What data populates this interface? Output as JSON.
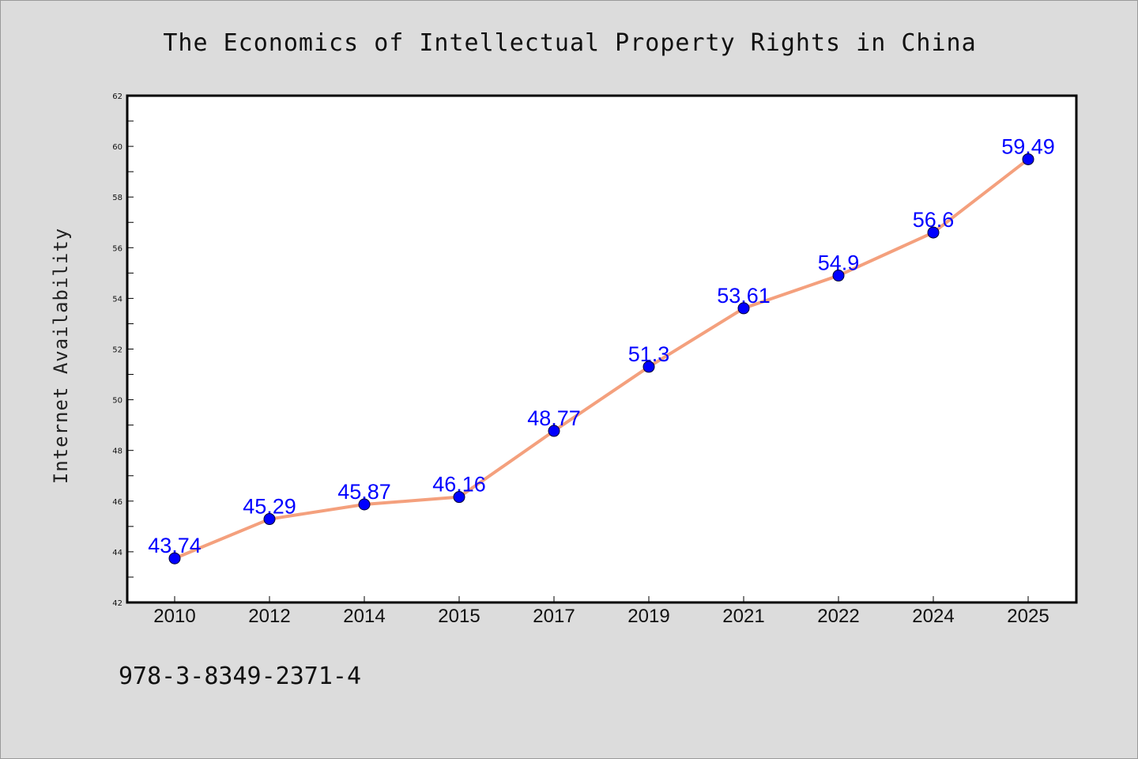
{
  "colors": {
    "background": "#dcdcdc",
    "plot_background": "#ffffff",
    "line": "#f4a07d",
    "marker": "#0000ff",
    "data_label": "#0000ff",
    "text": "#111111"
  },
  "footer": {
    "isbn": "978-3-8349-2371-4"
  },
  "chart_data": {
    "type": "line",
    "title": "The Economics of Intellectual Property Rights in China",
    "xlabel": "",
    "ylabel": "Internet Availability",
    "categories": [
      "2010",
      "2012",
      "2014",
      "2015",
      "2017",
      "2019",
      "2021",
      "2022",
      "2024",
      "2025"
    ],
    "values": [
      43.74,
      45.29,
      45.87,
      46.16,
      48.77,
      51.3,
      53.61,
      54.9,
      56.6,
      59.49
    ],
    "data_labels": [
      "43.74",
      "45.29",
      "45.87",
      "46.16",
      "48.77",
      "51.3",
      "53.61",
      "54.9",
      "56.6",
      "59.49"
    ],
    "ylim": [
      42,
      62
    ],
    "yticks": [
      42,
      44,
      46,
      48,
      50,
      52,
      54,
      56,
      58,
      60,
      62
    ],
    "grid": false,
    "legend": "none",
    "marker": "circle"
  }
}
